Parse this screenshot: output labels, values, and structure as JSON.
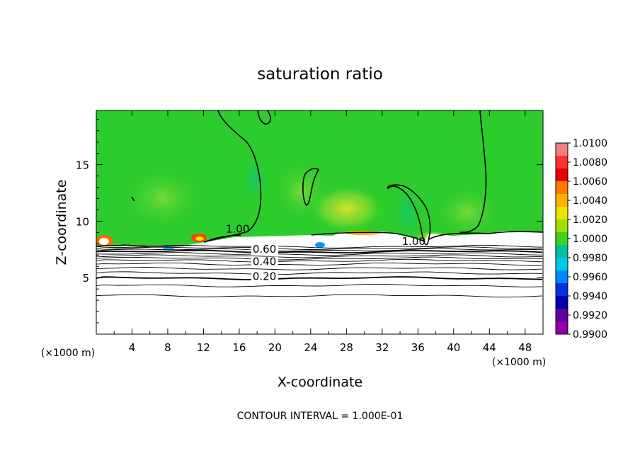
{
  "chart_data": {
    "type": "contour",
    "title": "saturation ratio",
    "xlabel": "X-coordinate",
    "ylabel": "Z-coordinate",
    "x_unit": "(×1000 m)",
    "y_unit": "(×1000 m)",
    "xlim": [
      0,
      50
    ],
    "ylim": [
      0,
      19.8
    ],
    "x_ticks": [
      4,
      8,
      12,
      16,
      20,
      24,
      28,
      32,
      36,
      40,
      44,
      48
    ],
    "y_ticks": [
      5,
      10,
      15
    ],
    "footer": "CONTOUR INTERVAL = 1.000E-01",
    "colorbar": {
      "levels": [
        "1.0100",
        "1.0080",
        "1.0060",
        "1.0040",
        "1.0020",
        "1.0000",
        "0.9980",
        "0.9960",
        "0.9940",
        "0.9920",
        "0.9900"
      ],
      "colors": [
        "#f08080",
        "#ff3030",
        "#e80000",
        "#ff7800",
        "#ffb000",
        "#e6e600",
        "#a0e000",
        "#40d020",
        "#00c0a0",
        "#00c8e8",
        "#0088ff",
        "#0030e0",
        "#0000b0",
        "#6000a0",
        "#9000a8"
      ]
    },
    "background_color": "#2ccc2c",
    "contour_labels": [
      {
        "text": "1.00",
        "x": 14.5,
        "z": 9.0
      },
      {
        "text": "1.00",
        "x": 34.2,
        "z": 7.9
      },
      {
        "text": "0.60",
        "x": 17.5,
        "z": 7.2
      },
      {
        "text": "0.40",
        "x": 17.5,
        "z": 6.1
      },
      {
        "text": "0.20",
        "x": 17.5,
        "z": 4.8
      }
    ],
    "contour_levels_z": [
      7.75,
      7.6,
      7.45,
      7.3,
      7.1,
      6.9,
      6.7,
      6.5,
      6.2,
      5.8,
      5.4,
      4.95,
      4.3,
      3.4
    ]
  }
}
